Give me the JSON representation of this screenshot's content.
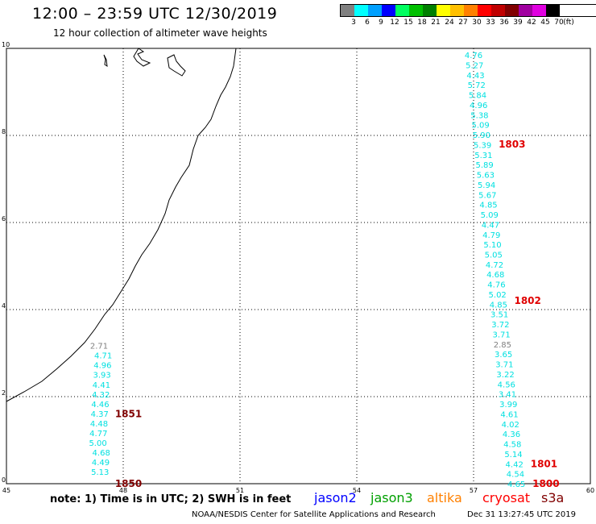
{
  "header": {
    "title": "12:00 – 23:59 UTC 12/30/2019",
    "subtitle": "12 hour collection of altimeter wave heights"
  },
  "legend": {
    "unit_label": "(ft)",
    "bins": [
      {
        "label": "3",
        "color": "#808080"
      },
      {
        "label": "6",
        "color": "#00ffff"
      },
      {
        "label": "9",
        "color": "#00a0ff"
      },
      {
        "label": "12",
        "color": "#0000ff"
      },
      {
        "label": "15",
        "color": "#00ff60"
      },
      {
        "label": "18",
        "color": "#00c000"
      },
      {
        "label": "21",
        "color": "#008000"
      },
      {
        "label": "24",
        "color": "#ffff00"
      },
      {
        "label": "27",
        "color": "#ffc000"
      },
      {
        "label": "30",
        "color": "#ff8000"
      },
      {
        "label": "33",
        "color": "#ff0000"
      },
      {
        "label": "36",
        "color": "#c00000"
      },
      {
        "label": "39",
        "color": "#800000"
      },
      {
        "label": "42",
        "color": "#a000a0"
      },
      {
        "label": "45",
        "color": "#e000e0"
      },
      {
        "label": "70",
        "color": "#000000"
      }
    ]
  },
  "map": {
    "x_ticks": [
      "45",
      "48",
      "51",
      "54",
      "57",
      "60"
    ],
    "y_ticks": [
      "0",
      "2",
      "4",
      "6",
      "8",
      "10"
    ],
    "track_color": "#00e0e0",
    "track_west": {
      "lon": 47.5,
      "heights": [
        "2.71",
        "4.71",
        "4.96",
        "3.93",
        "4.41",
        "4.32",
        "4.46",
        "4.37",
        "4.48",
        "4.77",
        "5.00",
        "4.68",
        "4.49",
        "5.13"
      ],
      "first_color": "#808080",
      "time_labels": [
        {
          "text": "1851",
          "color": "#800000",
          "lat": 1.6
        },
        {
          "text": "1850",
          "color": "#800000",
          "lat": 0.0
        }
      ]
    },
    "track_east": {
      "lon_start": 57.0,
      "lon_end": 58.1,
      "heights": [
        "4.76",
        "5.27",
        "4.43",
        "5.72",
        "5.84",
        "4.96",
        "5.38",
        "5.09",
        "5.90",
        "5.39",
        "5.31",
        "5.89",
        "5.63",
        "5.94",
        "5.67",
        "4.85",
        "5.09",
        "4.47",
        "4.79",
        "5.10",
        "5.05",
        "4.72",
        "4.68",
        "4.76",
        "5.02",
        "4.85",
        "3.51",
        "3.72",
        "3.71",
        "2.85",
        "3.65",
        "3.71",
        "3.22",
        "4.56",
        "3.41",
        "3.99",
        "4.61",
        "4.02",
        "4.36",
        "4.58",
        "5.14",
        "4.42",
        "4.54",
        "4.65"
      ],
      "grey_indices": [
        29
      ],
      "time_labels": [
        {
          "text": "1803",
          "color": "#e00000",
          "lat": 7.8
        },
        {
          "text": "1802",
          "color": "#e00000",
          "lat": 4.2
        },
        {
          "text": "1801",
          "color": "#e00000",
          "lat": 0.45
        },
        {
          "text": "1800",
          "color": "#e00000",
          "lat": 0.0
        }
      ]
    }
  },
  "footer": {
    "note": "note:  1) Time is in UTC;  2) SWH is in feet",
    "satellites": [
      {
        "name": "jason2",
        "color": "#0000ff"
      },
      {
        "name": "jason3",
        "color": "#00a000"
      },
      {
        "name": "altika",
        "color": "#ff8000"
      },
      {
        "name": "cryosat",
        "color": "#ff0000"
      },
      {
        "name": "s3a",
        "color": "#800000"
      }
    ],
    "credit": "NOAA/NESDIS Center for Satellite Applications and Research",
    "timestamp": "Dec 31 13:27:45 UTC 2019"
  }
}
